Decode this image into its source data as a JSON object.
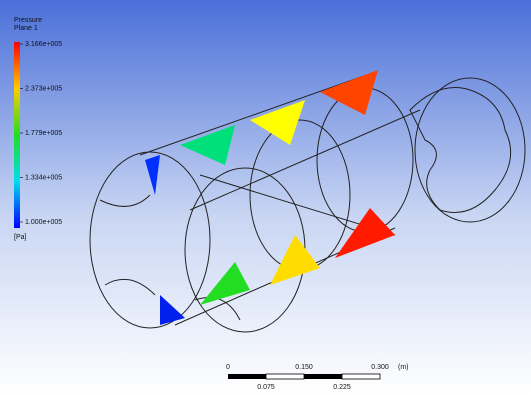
{
  "legend": {
    "title": "Pressure",
    "subtitle": "Plane 1",
    "labels": [
      "3.166e+005",
      "2.373e+005",
      "1.779e+005",
      "1.334e+005",
      "1.000e+005"
    ],
    "unit": "[Pa]"
  },
  "scale": {
    "top_labels": [
      "0",
      "0.150",
      "0.300"
    ],
    "unit": "(m)",
    "bottom_labels": [
      "0.075",
      "0.225"
    ]
  }
}
